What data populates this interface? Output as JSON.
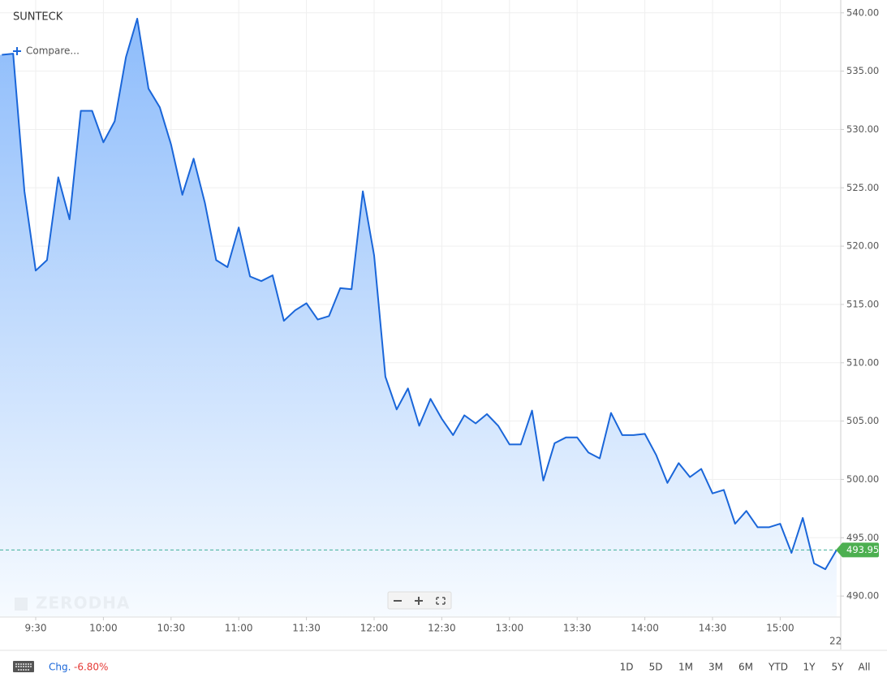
{
  "chart_data": {
    "type": "line",
    "title": "SUNTECK",
    "x": [
      "9:15",
      "9:20",
      "9:25",
      "9:30",
      "9:35",
      "9:40",
      "9:45",
      "9:50",
      "9:55",
      "10:00",
      "10:05",
      "10:10",
      "10:15",
      "10:20",
      "10:25",
      "10:30",
      "10:35",
      "10:40",
      "10:45",
      "10:50",
      "10:55",
      "11:00",
      "11:05",
      "11:10",
      "11:15",
      "11:20",
      "11:25",
      "11:30",
      "11:35",
      "11:40",
      "11:45",
      "11:50",
      "11:55",
      "12:00",
      "12:05",
      "12:10",
      "12:15",
      "12:20",
      "12:25",
      "12:30",
      "12:35",
      "12:40",
      "12:45",
      "12:50",
      "12:55",
      "13:00",
      "13:05",
      "13:10",
      "13:15",
      "13:20",
      "13:25",
      "13:30",
      "13:35",
      "13:40",
      "13:45",
      "13:50",
      "13:55",
      "14:00",
      "14:05",
      "14:10",
      "14:15",
      "14:20",
      "14:25",
      "14:30",
      "14:35",
      "14:40",
      "14:45",
      "14:50",
      "14:55",
      "15:00",
      "15:05",
      "15:10",
      "15:15",
      "15:20",
      "15:25"
    ],
    "series": [
      {
        "name": "SUNTECK",
        "color": "#1a66d9",
        "values": [
          536.4,
          536.5,
          524.7,
          517.9,
          518.8,
          525.9,
          522.3,
          531.6,
          531.6,
          528.9,
          530.7,
          536.2,
          539.5,
          533.5,
          531.9,
          528.7,
          524.4,
          527.5,
          523.7,
          518.8,
          518.2,
          521.6,
          517.4,
          517.0,
          517.5,
          513.6,
          514.5,
          515.1,
          513.7,
          514.0,
          516.4,
          516.3,
          524.7,
          519.2,
          508.8,
          506.0,
          507.8,
          504.6,
          506.9,
          505.2,
          503.8,
          505.5,
          504.8,
          505.6,
          504.6,
          503.0,
          503.0,
          505.9,
          499.9,
          503.1,
          503.6,
          503.6,
          502.3,
          501.8,
          505.7,
          503.8,
          503.8,
          503.9,
          502.1,
          499.7,
          501.4,
          500.2,
          500.9,
          498.8,
          499.1,
          496.2,
          497.3,
          495.9,
          495.9,
          496.2,
          493.7,
          496.7,
          492.8,
          492.3,
          493.95
        ]
      }
    ],
    "xticks": [
      "9:30",
      "10:00",
      "10:30",
      "11:00",
      "11:30",
      "12:00",
      "12:30",
      "13:00",
      "13:30",
      "14:00",
      "14:30",
      "15:00"
    ],
    "ylim": [
      488.2,
      541.1
    ],
    "yticks": [
      {
        "value": 490,
        "label": "490.00"
      },
      {
        "value": 495,
        "label": "495.00"
      },
      {
        "value": 500,
        "label": "500.00"
      },
      {
        "value": 505,
        "label": "505.00"
      },
      {
        "value": 510,
        "label": "510.00"
      },
      {
        "value": 515,
        "label": "515.00"
      },
      {
        "value": 520,
        "label": "520.00"
      },
      {
        "value": 525,
        "label": "525.00"
      },
      {
        "value": 530,
        "label": "530.00"
      },
      {
        "value": 535,
        "label": "535.00"
      },
      {
        "value": 540,
        "label": "540.00"
      }
    ],
    "grid": true,
    "last_price": 493.95,
    "last_price_color": "#4caf50",
    "date_label": "22"
  },
  "ui": {
    "compare": "Compare...",
    "watermark": "ZERODHA",
    "change_label": "Chg.",
    "change_value": "-6.80%",
    "ranges": [
      "1D",
      "5D",
      "1M",
      "3M",
      "6M",
      "YTD",
      "1Y",
      "5Y",
      "All"
    ]
  }
}
